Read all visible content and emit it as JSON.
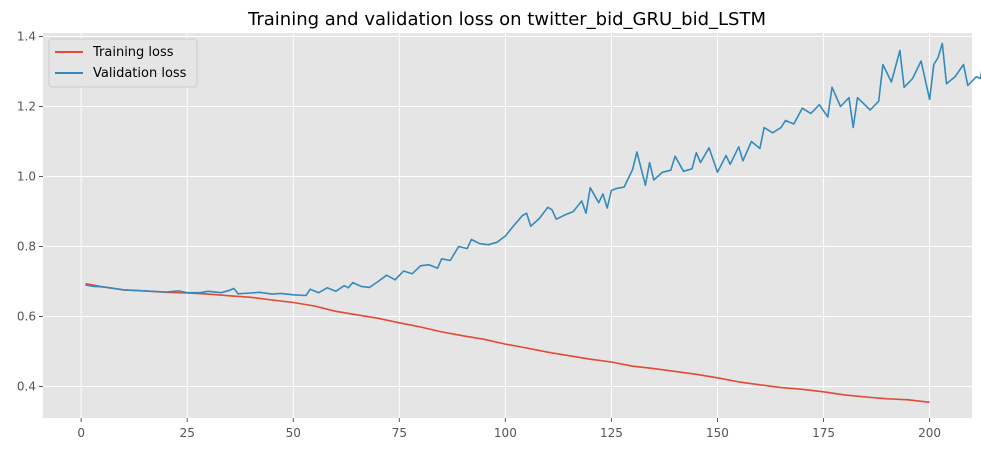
{
  "chart_data": {
    "type": "line",
    "title": "Training and validation loss on twitter_bid_GRU_bid_LSTM",
    "xlabel": "",
    "ylabel": "",
    "xlim": [
      -9,
      210
    ],
    "ylim": [
      0.31,
      1.41
    ],
    "xticks": [
      0,
      25,
      50,
      75,
      100,
      125,
      150,
      175,
      200
    ],
    "yticks": [
      0.4,
      0.6,
      0.8,
      1.0,
      1.2,
      1.4
    ],
    "ytick_labels": [
      "0.4",
      "0.6",
      "0.8",
      "1.0",
      "1.2",
      "1.4"
    ],
    "grid": true,
    "legend_position": "top-left",
    "background_color": "#e5e5e5",
    "grid_color": "#ffffff",
    "series": [
      {
        "name": "Training loss",
        "color": "#e24a33",
        "points": [
          [
            1,
            0.694
          ],
          [
            5,
            0.685
          ],
          [
            10,
            0.676
          ],
          [
            15,
            0.673
          ],
          [
            20,
            0.669
          ],
          [
            25,
            0.667
          ],
          [
            30,
            0.664
          ],
          [
            35,
            0.659
          ],
          [
            40,
            0.655
          ],
          [
            45,
            0.647
          ],
          [
            50,
            0.64
          ],
          [
            55,
            0.63
          ],
          [
            60,
            0.615
          ],
          [
            65,
            0.605
          ],
          [
            70,
            0.595
          ],
          [
            75,
            0.582
          ],
          [
            80,
            0.57
          ],
          [
            85,
            0.556
          ],
          [
            90,
            0.545
          ],
          [
            95,
            0.535
          ],
          [
            100,
            0.521
          ],
          [
            105,
            0.51
          ],
          [
            110,
            0.498
          ],
          [
            115,
            0.488
          ],
          [
            120,
            0.478
          ],
          [
            125,
            0.47
          ],
          [
            130,
            0.458
          ],
          [
            135,
            0.451
          ],
          [
            140,
            0.443
          ],
          [
            145,
            0.435
          ],
          [
            150,
            0.425
          ],
          [
            155,
            0.413
          ],
          [
            160,
            0.405
          ],
          [
            165,
            0.397
          ],
          [
            170,
            0.392
          ],
          [
            175,
            0.385
          ],
          [
            180,
            0.376
          ],
          [
            185,
            0.37
          ],
          [
            190,
            0.365
          ],
          [
            195,
            0.362
          ],
          [
            200,
            0.355
          ]
        ]
      },
      {
        "name": "Validation loss",
        "color": "#348abd",
        "points": [
          [
            1,
            0.69
          ],
          [
            3,
            0.686
          ],
          [
            5,
            0.685
          ],
          [
            8,
            0.68
          ],
          [
            10,
            0.676
          ],
          [
            15,
            0.673
          ],
          [
            20,
            0.67
          ],
          [
            23,
            0.673
          ],
          [
            25,
            0.668
          ],
          [
            28,
            0.668
          ],
          [
            30,
            0.672
          ],
          [
            33,
            0.668
          ],
          [
            35,
            0.675
          ],
          [
            36,
            0.68
          ],
          [
            37,
            0.665
          ],
          [
            40,
            0.667
          ],
          [
            42,
            0.669
          ],
          [
            45,
            0.664
          ],
          [
            47,
            0.666
          ],
          [
            50,
            0.662
          ],
          [
            53,
            0.66
          ],
          [
            54,
            0.678
          ],
          [
            56,
            0.668
          ],
          [
            58,
            0.682
          ],
          [
            60,
            0.672
          ],
          [
            62,
            0.688
          ],
          [
            63,
            0.682
          ],
          [
            64,
            0.697
          ],
          [
            66,
            0.686
          ],
          [
            68,
            0.683
          ],
          [
            70,
            0.7
          ],
          [
            72,
            0.718
          ],
          [
            74,
            0.705
          ],
          [
            76,
            0.73
          ],
          [
            78,
            0.722
          ],
          [
            80,
            0.745
          ],
          [
            82,
            0.748
          ],
          [
            84,
            0.738
          ],
          [
            85,
            0.765
          ],
          [
            87,
            0.76
          ],
          [
            89,
            0.8
          ],
          [
            91,
            0.794
          ],
          [
            92,
            0.82
          ],
          [
            94,
            0.808
          ],
          [
            96,
            0.805
          ],
          [
            98,
            0.812
          ],
          [
            100,
            0.83
          ],
          [
            102,
            0.86
          ],
          [
            104,
            0.888
          ],
          [
            105,
            0.895
          ],
          [
            106,
            0.858
          ],
          [
            108,
            0.88
          ],
          [
            110,
            0.912
          ],
          [
            111,
            0.905
          ],
          [
            112,
            0.878
          ],
          [
            114,
            0.89
          ],
          [
            116,
            0.9
          ],
          [
            118,
            0.93
          ],
          [
            119,
            0.895
          ],
          [
            120,
            0.968
          ],
          [
            122,
            0.925
          ],
          [
            123,
            0.95
          ],
          [
            124,
            0.91
          ],
          [
            125,
            0.96
          ],
          [
            126,
            0.965
          ],
          [
            128,
            0.97
          ],
          [
            130,
            1.02
          ],
          [
            131,
            1.07
          ],
          [
            133,
            0.975
          ],
          [
            134,
            1.04
          ],
          [
            135,
            0.99
          ],
          [
            137,
            1.012
          ],
          [
            139,
            1.018
          ],
          [
            140,
            1.058
          ],
          [
            142,
            1.015
          ],
          [
            144,
            1.022
          ],
          [
            145,
            1.068
          ],
          [
            146,
            1.04
          ],
          [
            148,
            1.082
          ],
          [
            150,
            1.012
          ],
          [
            152,
            1.06
          ],
          [
            153,
            1.035
          ],
          [
            155,
            1.085
          ],
          [
            156,
            1.045
          ],
          [
            158,
            1.1
          ],
          [
            160,
            1.08
          ],
          [
            161,
            1.14
          ],
          [
            163,
            1.125
          ],
          [
            165,
            1.14
          ],
          [
            166,
            1.16
          ],
          [
            168,
            1.15
          ],
          [
            170,
            1.195
          ],
          [
            172,
            1.18
          ],
          [
            174,
            1.205
          ],
          [
            176,
            1.17
          ],
          [
            177,
            1.255
          ],
          [
            179,
            1.2
          ],
          [
            181,
            1.225
          ],
          [
            182,
            1.14
          ],
          [
            183,
            1.225
          ],
          [
            186,
            1.19
          ],
          [
            188,
            1.215
          ],
          [
            189,
            1.32
          ],
          [
            191,
            1.27
          ],
          [
            193,
            1.36
          ],
          [
            194,
            1.255
          ],
          [
            196,
            1.28
          ],
          [
            198,
            1.33
          ],
          [
            200,
            1.22
          ],
          [
            201,
            1.32
          ],
          [
            202,
            1.34
          ],
          [
            203,
            1.38
          ],
          [
            204,
            1.265
          ],
          [
            206,
            1.285
          ],
          [
            208,
            1.32
          ],
          [
            209,
            1.26
          ],
          [
            211,
            1.285
          ],
          [
            212,
            1.28
          ],
          [
            213,
            1.355
          ],
          [
            214,
            1.305
          ],
          [
            215,
            1.335
          ]
        ]
      }
    ]
  }
}
